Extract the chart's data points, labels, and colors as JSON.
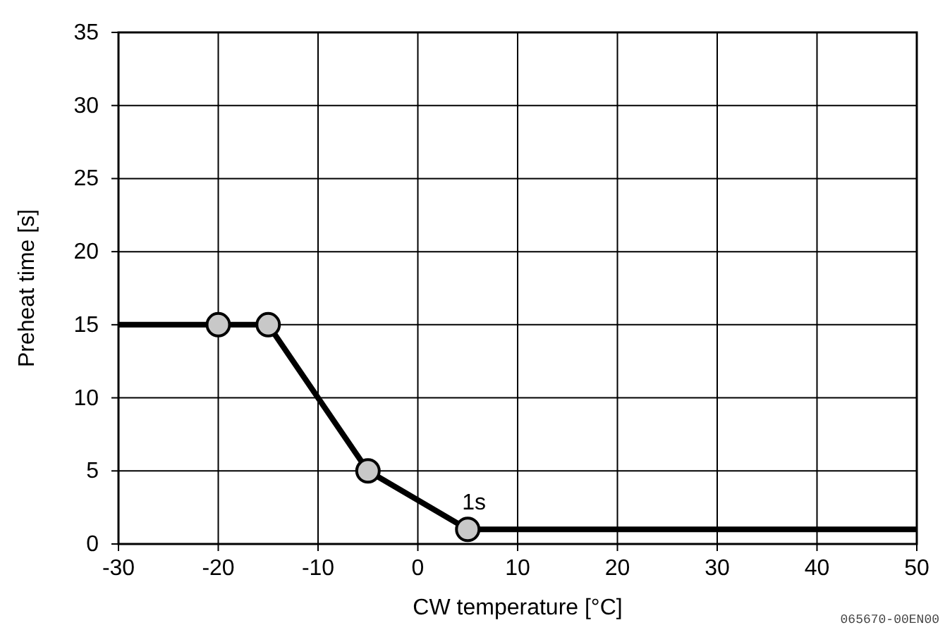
{
  "chart_data": {
    "type": "line",
    "xlabel": "CW temperature [°C]",
    "ylabel": "Preheat time [s]",
    "xlim": [
      -30,
      50
    ],
    "xticks": [
      -30,
      -20,
      -10,
      0,
      10,
      20,
      30,
      40,
      50
    ],
    "ylim": [
      0,
      35
    ],
    "yticks": [
      0,
      5,
      10,
      15,
      20,
      25,
      30,
      35
    ],
    "grid": true,
    "series": [
      {
        "type": "line",
        "color": "#000000",
        "x": [
          -30,
          -20,
          -15,
          -5,
          5,
          50
        ],
        "values": [
          15,
          15,
          15,
          5,
          1,
          1
        ],
        "marker": "none"
      },
      {
        "type": "scatter",
        "color": "#c8c8c8",
        "x": [
          -20,
          -15,
          -5,
          5
        ],
        "values": [
          15,
          15,
          5,
          1
        ],
        "marker": "circle"
      }
    ],
    "annotations": [
      {
        "text": "1s",
        "x": 5,
        "y": 1
      },
      "065670-00EN00"
    ]
  }
}
